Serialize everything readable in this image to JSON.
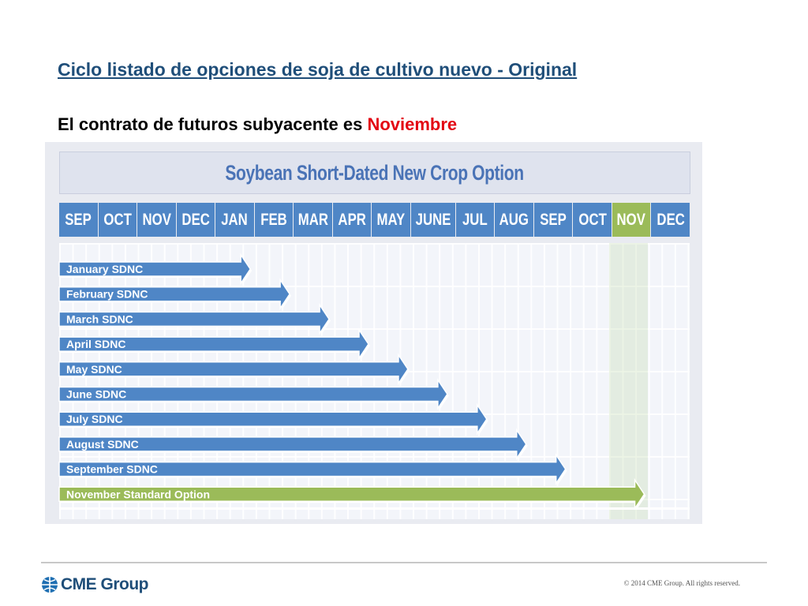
{
  "slide": {
    "title": "Ciclo listado de opciones de soja de cultivo nuevo - Original",
    "subtitle_prefix": "El contrato de futuros subyacente es ",
    "subtitle_highlight": "Noviembre"
  },
  "diagram": {
    "banner": "Soybean Short-Dated New Crop Option",
    "months": [
      "SEP",
      "OCT",
      "NOV",
      "DEC",
      "JAN",
      "FEB",
      "MAR",
      "APR",
      "MAY",
      "JUNE",
      "JUL",
      "AUG",
      "SEP",
      "OCT",
      "NOV",
      "DEC"
    ],
    "highlighted_month_index": 14,
    "options": [
      {
        "label": "January SDNC",
        "end_month_index": 4,
        "color": "#4f86c6"
      },
      {
        "label": "February SDNC",
        "end_month_index": 5,
        "color": "#4f86c6"
      },
      {
        "label": "March SDNC",
        "end_month_index": 6,
        "color": "#4f86c6"
      },
      {
        "label": "April SDNC",
        "end_month_index": 7,
        "color": "#4f86c6"
      },
      {
        "label": "May SDNC",
        "end_month_index": 8,
        "color": "#4f86c6"
      },
      {
        "label": "June SDNC",
        "end_month_index": 9,
        "color": "#4f86c6"
      },
      {
        "label": "July SDNC",
        "end_month_index": 10,
        "color": "#4f86c6"
      },
      {
        "label": "August SDNC",
        "end_month_index": 11,
        "color": "#4f86c6"
      },
      {
        "label": "September SDNC",
        "end_month_index": 12,
        "color": "#4f86c6"
      },
      {
        "label": "November Standard Option",
        "end_month_index": 14,
        "color": "#9bbb59"
      }
    ]
  },
  "footer": {
    "logo_text": "CME Group",
    "copyright": "© 2014 CME Group. All rights reserved."
  },
  "colors": {
    "title": "#1f4e79",
    "highlight": "#e30613",
    "sdnc_arrow": "#4f86c6",
    "standard_option": "#9bbb59"
  },
  "icons": {
    "logo": "cme-globe-icon"
  }
}
